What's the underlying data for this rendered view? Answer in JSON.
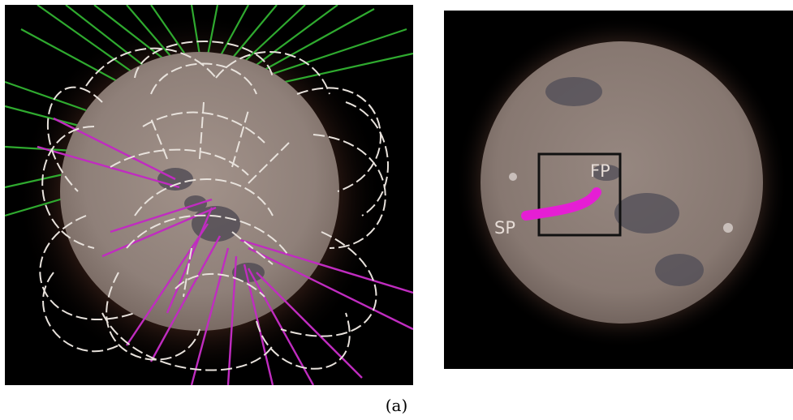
{
  "caption": "(a)",
  "left_panel": {
    "colors": {
      "closed_field_lines": "#e8e2dc",
      "open_field_lines_north": "#2faa2f",
      "open_field_lines_south": "#c02cc0",
      "solar_disk": "#9a8a80"
    }
  },
  "right_panel": {
    "labels": {
      "fp": "FP",
      "sp": "SP"
    },
    "colors": {
      "trajectory": "#e51ed4",
      "box": "#111111",
      "solar_disk": "#8e7f78"
    }
  }
}
